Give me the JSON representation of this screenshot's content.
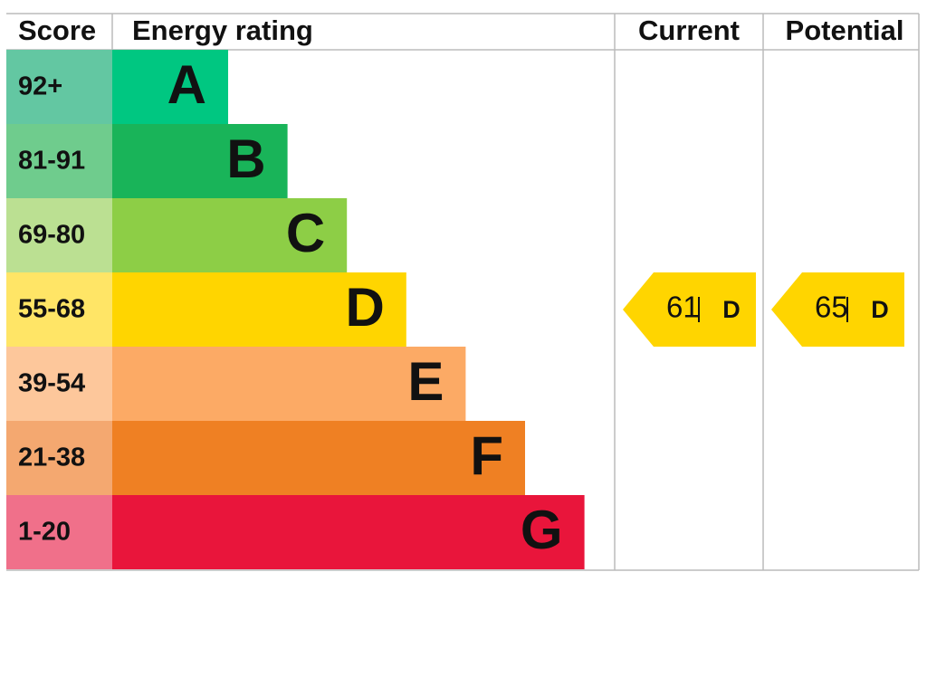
{
  "header": {
    "score": "Score",
    "rating": "Energy rating",
    "current": "Current",
    "potential": "Potential"
  },
  "bands": [
    {
      "score": "92+",
      "letter": "A",
      "color": "#00c781",
      "score_color": "#63c7a2"
    },
    {
      "score": "81-91",
      "letter": "B",
      "color": "#19b459",
      "score_color": "#6fcc8d"
    },
    {
      "score": "69-80",
      "letter": "C",
      "color": "#8dce46",
      "score_color": "#bbe092"
    },
    {
      "score": "55-68",
      "letter": "D",
      "color": "#ffd500",
      "score_color": "#ffe566"
    },
    {
      "score": "39-54",
      "letter": "E",
      "color": "#fcaa65",
      "score_color": "#fdc79b"
    },
    {
      "score": "21-38",
      "letter": "F",
      "color": "#ef8023",
      "score_color": "#f4a870"
    },
    {
      "score": "1-20",
      "letter": "G",
      "color": "#e9153b",
      "score_color": "#f0708a"
    }
  ],
  "current": {
    "value": 61,
    "letter": "D"
  },
  "potential": {
    "value": 65,
    "letter": "D"
  }
}
